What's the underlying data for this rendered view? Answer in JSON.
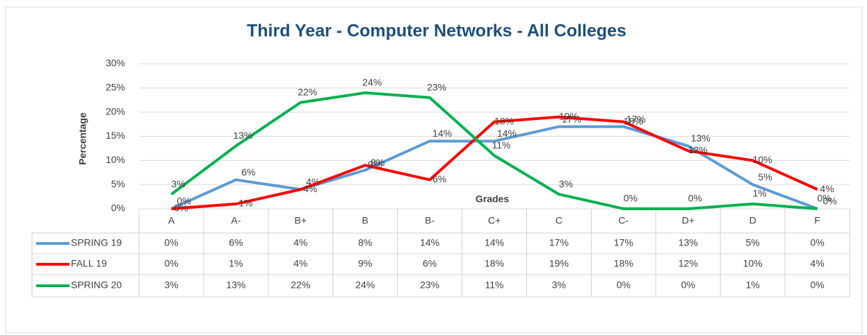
{
  "chart_data": {
    "type": "line",
    "title": "Third  Year - Computer  Networks - All Colleges",
    "x_label": "Grades",
    "y_label": "Percentage",
    "categories": [
      "A",
      "A-",
      "B+",
      "B",
      "B-",
      "C+",
      "C",
      "C-",
      "D+",
      "D",
      "F"
    ],
    "series": [
      {
        "name": "SPRING 19",
        "color": "#5b9bd5",
        "values": [
          0,
          6,
          4,
          8,
          14,
          14,
          17,
          17,
          13,
          5,
          0
        ],
        "value_labels": [
          "0%",
          "6%",
          "4%",
          "8%",
          "14%",
          "14%",
          "17%",
          "17%",
          "13%",
          "5%",
          "0%"
        ]
      },
      {
        "name": "FALL 19",
        "color": "#ff0000",
        "values": [
          0,
          1,
          4,
          9,
          6,
          18,
          19,
          18,
          12,
          10,
          4
        ],
        "value_labels": [
          "0%",
          "1%",
          "4%",
          "9%",
          "6%",
          "18%",
          "19%",
          "18%",
          "12%",
          "10%",
          "4%"
        ]
      },
      {
        "name": "SPRING 20",
        "color": "#00b050",
        "values": [
          3,
          13,
          22,
          24,
          23,
          11,
          3,
          0,
          0,
          1,
          0
        ],
        "value_labels": [
          "3%",
          "13%",
          "22%",
          "24%",
          "23%",
          "11%",
          "3%",
          "0%",
          "0%",
          "1%",
          "0%"
        ]
      }
    ],
    "ylim": [
      0,
      30
    ],
    "yticks": [
      {
        "value": 0,
        "label": "0%"
      },
      {
        "value": 5,
        "label": "5%"
      },
      {
        "value": 10,
        "label": "10%"
      },
      {
        "value": 15,
        "label": "15%"
      },
      {
        "value": 20,
        "label": "20%"
      },
      {
        "value": 25,
        "label": "25%"
      },
      {
        "value": 30,
        "label": "30%"
      }
    ],
    "grid": true
  }
}
